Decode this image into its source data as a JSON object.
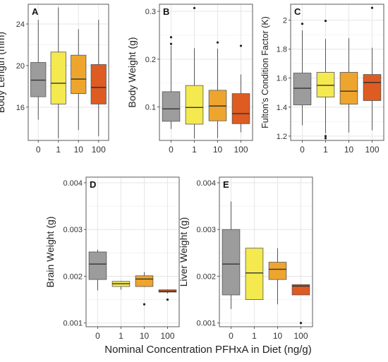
{
  "figure": {
    "common_xlabel": "Nominal Concentration PFHxA in Diet (ng/g)"
  },
  "colors": {
    "0": "#9c9c9c",
    "1": "#f4e94f",
    "10": "#eea52e",
    "100": "#de5b22",
    "grid": "#e6e6e6",
    "panel_border": "#595959",
    "box_stroke": "#555555",
    "median": "#333333",
    "outlier": "#222222"
  },
  "chart_data": [
    {
      "type": "box",
      "panel": "A",
      "ylabel": "Body Length (mm)",
      "categories": [
        "0",
        "1",
        "10",
        "100"
      ],
      "yticks": [
        16,
        20,
        24
      ],
      "ylim": [
        12.8,
        25.9
      ],
      "boxes": [
        {
          "q1": 17.0,
          "median": 18.6,
          "q3": 20.3,
          "whisker_low": 14.8,
          "whisker_high": 24.4,
          "outliers": []
        },
        {
          "q1": 16.3,
          "median": 18.3,
          "q3": 21.3,
          "whisker_low": 13.0,
          "whisker_high": 25.6,
          "outliers": []
        },
        {
          "q1": 17.3,
          "median": 18.7,
          "q3": 21.0,
          "whisker_low": 13.8,
          "whisker_high": 23.5,
          "outliers": []
        },
        {
          "q1": 16.3,
          "median": 17.9,
          "q3": 20.1,
          "whisker_low": 13.2,
          "whisker_high": 24.4,
          "outliers": []
        }
      ]
    },
    {
      "type": "box",
      "panel": "B",
      "ylabel": "Body Weight (g)",
      "categories": [
        "0",
        "1",
        "10",
        "100"
      ],
      "yticks": [
        0.1,
        0.2,
        0.3
      ],
      "ylim": [
        0.03,
        0.315
      ],
      "boxes": [
        {
          "q1": 0.07,
          "median": 0.096,
          "q3": 0.132,
          "whisker_low": 0.054,
          "whisker_high": 0.228,
          "outliers": [
            0.232,
            0.246
          ]
        },
        {
          "q1": 0.064,
          "median": 0.099,
          "q3": 0.145,
          "whisker_low": 0.034,
          "whisker_high": 0.223,
          "outliers": [
            0.307
          ]
        },
        {
          "q1": 0.071,
          "median": 0.102,
          "q3": 0.135,
          "whisker_low": 0.035,
          "whisker_high": 0.222,
          "outliers": [
            0.235
          ]
        },
        {
          "q1": 0.065,
          "median": 0.086,
          "q3": 0.128,
          "whisker_low": 0.047,
          "whisker_high": 0.168,
          "outliers": [
            0.228
          ]
        }
      ]
    },
    {
      "type": "box",
      "panel": "C",
      "ylabel": "Fulton's Condition Factor (K)",
      "categories": [
        "0",
        "1",
        "10",
        "100"
      ],
      "yticks": [
        1.2,
        1.4,
        1.6,
        1.8,
        2.0
      ],
      "ylim": [
        1.17,
        2.11
      ],
      "boxes": [
        {
          "q1": 1.415,
          "median": 1.53,
          "q3": 1.635,
          "whisker_low": 1.275,
          "whisker_high": 1.93,
          "outliers": [
            1.975
          ]
        },
        {
          "q1": 1.47,
          "median": 1.55,
          "q3": 1.64,
          "whisker_low": 1.22,
          "whisker_high": 1.87,
          "outliers": [
            1.2,
            1.185,
            1.995
          ]
        },
        {
          "q1": 1.42,
          "median": 1.51,
          "q3": 1.64,
          "whisker_low": 1.225,
          "whisker_high": 1.875,
          "outliers": []
        },
        {
          "q1": 1.445,
          "median": 1.57,
          "q3": 1.625,
          "whisker_low": 1.24,
          "whisker_high": 1.81,
          "outliers": [
            2.085
          ]
        }
      ]
    },
    {
      "type": "box",
      "panel": "D",
      "ylabel": "Brain Weight (g)",
      "categories": [
        "0",
        "1",
        "10",
        "100"
      ],
      "yticks": [
        "0.001",
        "0.002",
        "0.003",
        "0.004"
      ],
      "ylim": [
        0.00092,
        0.00412
      ],
      "boxes": [
        {
          "q1": 0.00193,
          "median": 0.00226,
          "q3": 0.00252,
          "whisker_low": 0.0017,
          "whisker_high": 0.00257,
          "outliers": []
        },
        {
          "q1": 0.00178,
          "median": 0.00184,
          "q3": 0.00189,
          "whisker_low": 0.00171,
          "whisker_high": 0.0019,
          "outliers": []
        },
        {
          "q1": 0.00178,
          "median": 0.00194,
          "q3": 0.00201,
          "whisker_low": 0.00177,
          "whisker_high": 0.00209,
          "outliers": [
            0.0014
          ]
        },
        {
          "q1": 0.00166,
          "median": 0.00168,
          "q3": 0.00171,
          "whisker_low": 0.00163,
          "whisker_high": 0.00172,
          "outliers": [
            0.0015
          ]
        }
      ]
    },
    {
      "type": "box",
      "panel": "E",
      "ylabel": "Liver Weight (g)",
      "categories": [
        "0",
        "1",
        "10",
        "100"
      ],
      "yticks": [
        "0.001",
        "0.002",
        "0.003",
        "0.004"
      ],
      "ylim": [
        0.00092,
        0.00412
      ],
      "boxes": [
        {
          "q1": 0.0016,
          "median": 0.00226,
          "q3": 0.003,
          "whisker_low": 0.0013,
          "whisker_high": 0.0036,
          "outliers": []
        },
        {
          "q1": 0.0015,
          "median": 0.00207,
          "q3": 0.0026,
          "whisker_low": 0.0015,
          "whisker_high": 0.0026,
          "outliers": []
        },
        {
          "q1": 0.00193,
          "median": 0.00215,
          "q3": 0.0023,
          "whisker_low": 0.0014,
          "whisker_high": 0.0026,
          "outliers": []
        },
        {
          "q1": 0.0016,
          "median": 0.00179,
          "q3": 0.00182,
          "whisker_low": 0.0016,
          "whisker_high": 0.00183,
          "outliers": [
            0.001
          ]
        }
      ]
    }
  ]
}
